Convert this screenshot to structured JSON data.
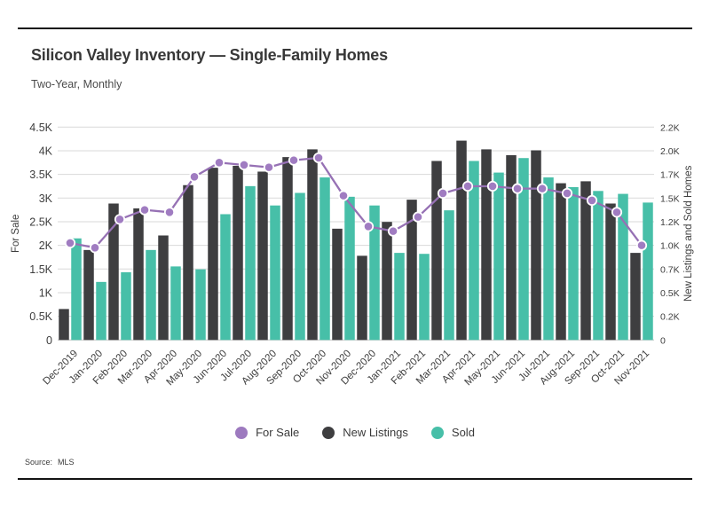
{
  "header": {
    "title": "Silicon Valley Inventory — Single-Family Homes",
    "subtitle": "Two-Year, Monthly"
  },
  "footer": {
    "source_label": "Source:",
    "source_value": "MLS"
  },
  "legend": {
    "items": [
      {
        "label": "For Sale",
        "color": "#9d7abf"
      },
      {
        "label": "New Listings",
        "color": "#3e3e40"
      },
      {
        "label": "Sold",
        "color": "#47bfa8"
      }
    ]
  },
  "colors": {
    "for_sale_line": "#9671b4",
    "for_sale_marker": "#a07cc1",
    "new_listings_bar": "#3e3e40",
    "sold_bar": "#47bfa8",
    "gridline": "#d9d9d9",
    "baseline": "#c4c4c4",
    "axis_text": "#3d3d3d"
  },
  "chart_data": {
    "type": "combo-bar-line",
    "categories": [
      "Dec-2019",
      "Jan-2020",
      "Feb-2020",
      "Mar-2020",
      "Apr-2020",
      "May-2020",
      "Jun-2020",
      "Jul-2020",
      "Aug-2020",
      "Sep-2020",
      "Oct-2020",
      "Nov-2020",
      "Dec-2020",
      "Jan-2021",
      "Feb-2021",
      "Mar-2021",
      "Apr-2021",
      "May-2021",
      "Jun-2021",
      "Jul-2021",
      "Aug-2021",
      "Sep-2021",
      "Oct-2021",
      "Nov-2021"
    ],
    "series": [
      {
        "name": "For Sale",
        "type": "line",
        "axis": "left",
        "values": [
          2050,
          1950,
          2550,
          2750,
          2700,
          3450,
          3750,
          3700,
          3650,
          3800,
          3850,
          3050,
          2400,
          2300,
          2600,
          3100,
          3250,
          3250,
          3200,
          3200,
          3100,
          2950,
          2700,
          2000
        ]
      },
      {
        "name": "New Listings",
        "type": "bar",
        "axis": "right",
        "values": [
          320,
          930,
          1410,
          1360,
          1080,
          1600,
          1780,
          1800,
          1740,
          1890,
          1970,
          1150,
          870,
          1220,
          1450,
          1850,
          2060,
          1970,
          1910,
          1960,
          1620,
          1640,
          1410,
          900
        ]
      },
      {
        "name": "Sold",
        "type": "bar",
        "axis": "right",
        "values": [
          1050,
          600,
          700,
          930,
          760,
          730,
          1300,
          1590,
          1390,
          1520,
          1680,
          1480,
          1390,
          900,
          890,
          1340,
          1850,
          1730,
          1880,
          1680,
          1580,
          1540,
          1510,
          1420
        ]
      }
    ],
    "left_axis": {
      "label": "For Sale",
      "min": 0,
      "max": 4500,
      "tick_labels": [
        "4.5K",
        "4K",
        "3.5K",
        "3K",
        "2.5K",
        "2K",
        "1.5K",
        "1K",
        "0.5K",
        "0"
      ]
    },
    "right_axis": {
      "label": "New Listings and Sold Homes",
      "min": 0,
      "max": 2200,
      "tick_labels": [
        "2.2K",
        "2.0K",
        "1.7K",
        "1.5K",
        "1.2K",
        "1.0K",
        "0.7K",
        "0.5K",
        "0.2K",
        "0"
      ]
    },
    "grid": true,
    "legend_position": "bottom"
  }
}
